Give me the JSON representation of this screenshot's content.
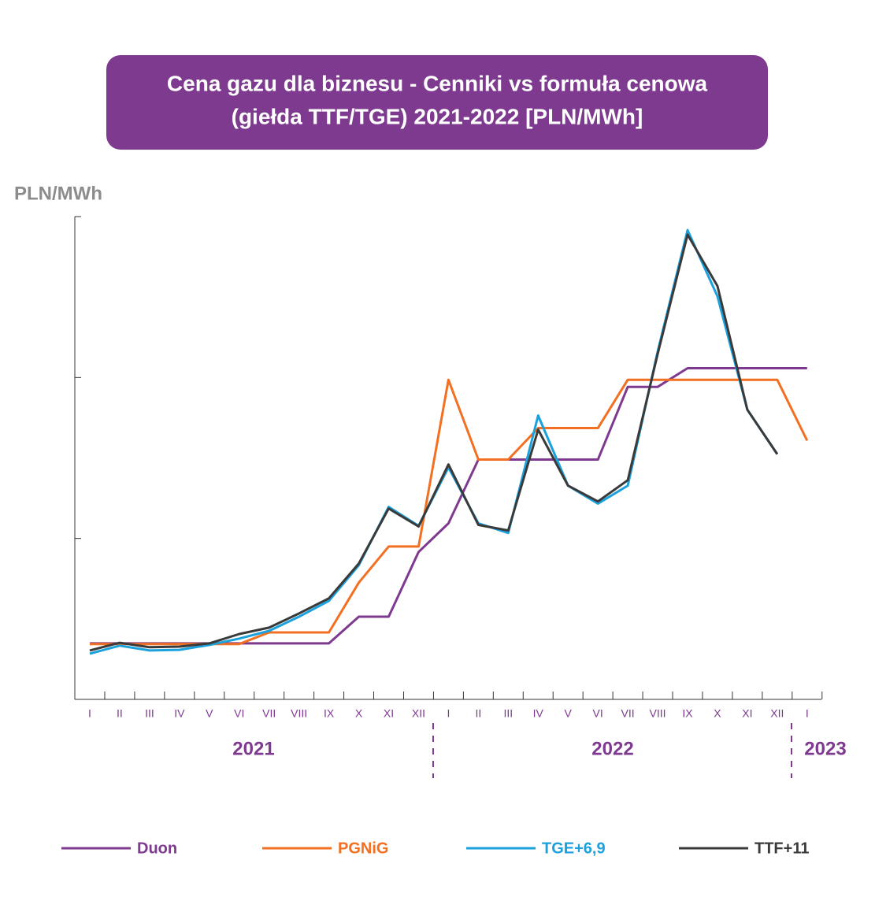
{
  "chart_data": {
    "type": "line",
    "title": "Cena gazu dla biznesu - Cenniki vs formuła cenowa",
    "subtitle": "(giełda TTF/TGE) 2021-2022 [PLN/MWh]",
    "y_label": "PLN/MWh",
    "categories": [
      "I",
      "II",
      "III",
      "IV",
      "V",
      "VI",
      "VII",
      "VIII",
      "IX",
      "X",
      "XI",
      "XII",
      "I",
      "II",
      "III",
      "IV",
      "V",
      "VI",
      "VII",
      "VIII",
      "IX",
      "X",
      "XI",
      "XII",
      "I"
    ],
    "x_groups": [
      "2021",
      "2022",
      "2023"
    ],
    "ylim": [
      0,
      1500
    ],
    "yticks": [
      0,
      500,
      1000,
      1500
    ],
    "series": [
      {
        "name": "Duon",
        "color": "#7e3a8f",
        "values": [
          174,
          174,
          174,
          174,
          174,
          174,
          174,
          174,
          174,
          257,
          257,
          458,
          547,
          745,
          745,
          745,
          745,
          745,
          971,
          971,
          1029,
          1029,
          1029,
          1029,
          1029
        ]
      },
      {
        "name": "PGNiG",
        "color": "#f36f21",
        "values": [
          172,
          172,
          172,
          172,
          172,
          172,
          208,
          208,
          208,
          363,
          475,
          475,
          993,
          745,
          745,
          843,
          843,
          843,
          993,
          993,
          993,
          993,
          993,
          993,
          804
        ]
      },
      {
        "name": "TGE+6,9",
        "color": "#1ba1dc",
        "values": [
          142,
          167,
          152,
          154,
          169,
          189,
          213,
          257,
          306,
          417,
          598,
          539,
          721,
          547,
          517,
          882,
          664,
          608,
          664,
          1081,
          1458,
          1252,
          900,
          762,
          null
        ]
      },
      {
        "name": "TTF+11",
        "color": "#3a3a3a",
        "values": [
          152,
          176,
          162,
          164,
          174,
          203,
          223,
          267,
          314,
          422,
          593,
          537,
          730,
          542,
          525,
          838,
          664,
          615,
          681,
          1074,
          1444,
          1284,
          900,
          762,
          null
        ]
      }
    ]
  }
}
